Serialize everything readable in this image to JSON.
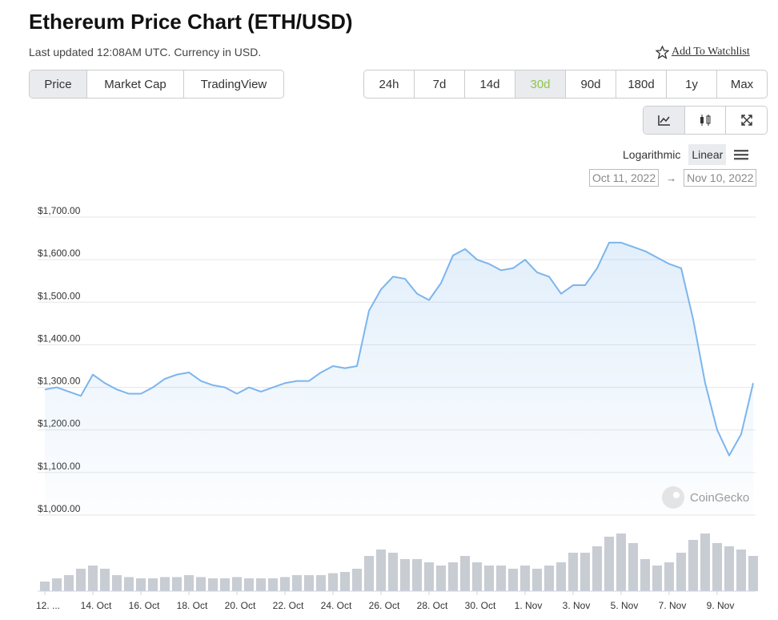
{
  "header": {
    "title": "Ethereum Price Chart (ETH/USD)",
    "subtitle": "Last updated 12:08AM UTC. Currency in USD.",
    "watchlist": "Add To Watchlist"
  },
  "tabs": [
    "Price",
    "Market Cap",
    "TradingView"
  ],
  "ranges": [
    "24h",
    "7d",
    "14d",
    "30d",
    "90d",
    "180d",
    "1y",
    "Max"
  ],
  "active_range": 3,
  "scale_options": [
    "Logarithmic",
    "Linear"
  ],
  "date_from": "Oct 11, 2022",
  "date_arrow": "→",
  "date_to": "Nov 10, 2022",
  "watermark": "CoinGecko",
  "chart_data": {
    "type": "line",
    "color": "#7cb5ec",
    "grid": true,
    "categories": [
      "12. ...",
      null,
      null,
      null,
      "14. Oct",
      null,
      null,
      null,
      "16. Oct",
      null,
      null,
      null,
      "18. Oct",
      null,
      null,
      null,
      "20. Oct",
      null,
      null,
      null,
      "22. Oct",
      null,
      null,
      null,
      "24. Oct",
      null,
      null,
      null,
      "26. Oct",
      null,
      null,
      null,
      "28. Oct",
      null,
      null,
      null,
      "30. Oct",
      null,
      null,
      null,
      "1. Nov",
      null,
      null,
      null,
      "3. Nov",
      null,
      null,
      null,
      "5. Nov",
      null,
      null,
      null,
      "7. Nov",
      null,
      null,
      null,
      "9. Nov",
      null,
      null,
      null
    ],
    "series": [
      {
        "name": "Price",
        "color": "#7cb5ec",
        "values": [
          1295,
          1300,
          1290,
          1280,
          1330,
          1310,
          1295,
          1285,
          1285,
          1300,
          1320,
          1330,
          1335,
          1315,
          1305,
          1300,
          1285,
          1300,
          1290,
          1300,
          1310,
          1315,
          1315,
          1335,
          1350,
          1345,
          1350,
          1480,
          1530,
          1560,
          1555,
          1520,
          1505,
          1545,
          1610,
          1625,
          1600,
          1590,
          1575,
          1580,
          1600,
          1570,
          1560,
          1520,
          1540,
          1540,
          1580,
          1640,
          1640,
          1630,
          1620,
          1605,
          1590,
          1580,
          1460,
          1310,
          1200,
          1140,
          1190,
          1310
        ]
      }
    ],
    "volume": {
      "color": "#c8ccd3",
      "vlim": [
        0,
        100
      ],
      "values": [
        15,
        20,
        25,
        35,
        40,
        35,
        25,
        22,
        20,
        20,
        22,
        22,
        25,
        22,
        20,
        20,
        22,
        20,
        20,
        20,
        22,
        25,
        25,
        25,
        28,
        30,
        35,
        55,
        65,
        60,
        50,
        50,
        45,
        40,
        45,
        55,
        45,
        40,
        40,
        35,
        40,
        35,
        40,
        45,
        60,
        60,
        70,
        85,
        90,
        75,
        50,
        40,
        45,
        60,
        80,
        90,
        75,
        70,
        65,
        55
      ]
    },
    "ylim": [
      1000,
      1700
    ],
    "yticks": [
      {
        "value": 1000,
        "label": "$1,000.00"
      },
      {
        "value": 1100,
        "label": "$1,100.00"
      },
      {
        "value": 1200,
        "label": "$1,200.00"
      },
      {
        "value": 1300,
        "label": "$1,300.00"
      },
      {
        "value": 1400,
        "label": "$1,400.00"
      },
      {
        "value": 1500,
        "label": "$1,500.00"
      },
      {
        "value": 1600,
        "label": "$1,600.00"
      },
      {
        "value": 1700,
        "label": "$1,700.00"
      }
    ]
  }
}
